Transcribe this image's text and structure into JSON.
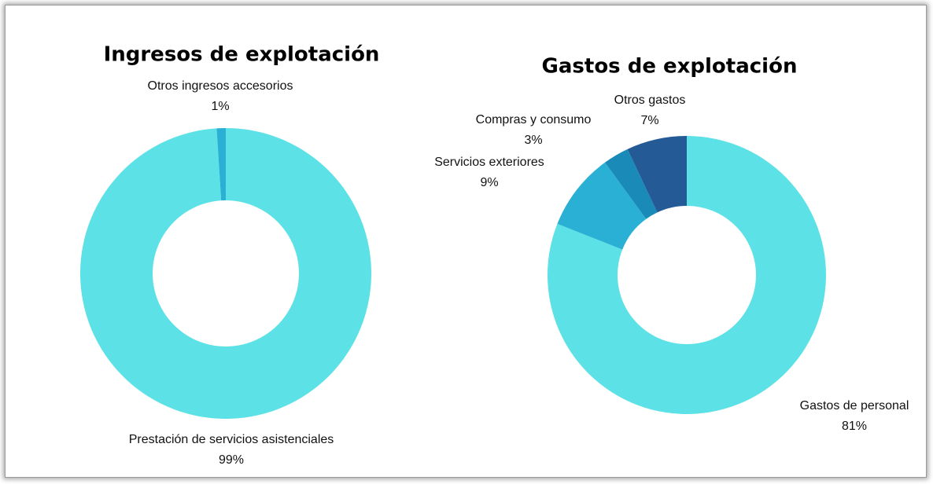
{
  "chart_data": [
    {
      "type": "pie",
      "donut": true,
      "title": "Ingresos de explotación",
      "categories": [
        "Prestación de servicios asistenciales",
        "Otros ingresos accesorios"
      ],
      "values": [
        99,
        1
      ],
      "value_labels": [
        "99%",
        "1%"
      ],
      "colors": [
        "#5ce1e6",
        "#2ab0d4"
      ]
    },
    {
      "type": "pie",
      "donut": true,
      "title": "Gastos de explotación",
      "categories": [
        "Gastos de personal",
        "Servicios exteriores",
        "Compras y consumo",
        "Otros gastos"
      ],
      "values": [
        81,
        9,
        3,
        7
      ],
      "value_labels": [
        "81%",
        "9%",
        "3%",
        "7%"
      ],
      "colors": [
        "#5ce1e6",
        "#2ab0d4",
        "#1a8ab8",
        "#245a96"
      ]
    }
  ]
}
